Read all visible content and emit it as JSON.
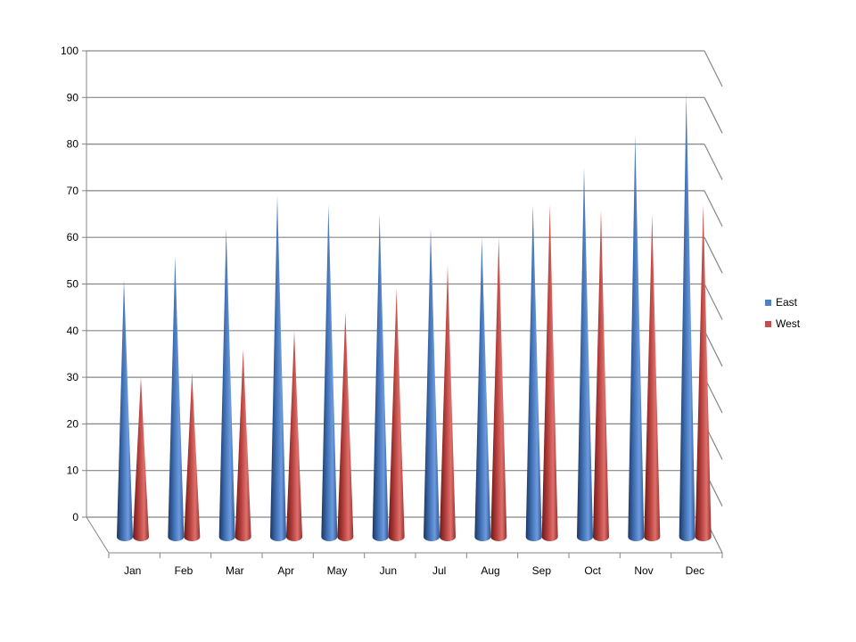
{
  "chart_data": {
    "type": "bar",
    "style": "3d-cone",
    "categories": [
      "Jan",
      "Feb",
      "Mar",
      "Apr",
      "May",
      "Jun",
      "Jul",
      "Aug",
      "Sep",
      "Oct",
      "Nov",
      "Dec"
    ],
    "series": [
      {
        "name": "East",
        "color": "#4f81bd",
        "values": [
          51,
          56,
          62,
          69,
          67,
          65,
          62,
          60,
          67,
          75,
          82,
          91
        ]
      },
      {
        "name": "West",
        "color": "#c0504d",
        "values": [
          30,
          31,
          36,
          40,
          44,
          49,
          54,
          60,
          67,
          66,
          65,
          67
        ]
      }
    ],
    "y_ticks": [
      "0",
      "10",
      "20",
      "30",
      "40",
      "50",
      "60",
      "70",
      "80",
      "90",
      "100"
    ],
    "ylim": [
      0,
      100
    ],
    "grid": true,
    "legend_position": "right",
    "title": "",
    "xlabel": "",
    "ylabel": ""
  }
}
